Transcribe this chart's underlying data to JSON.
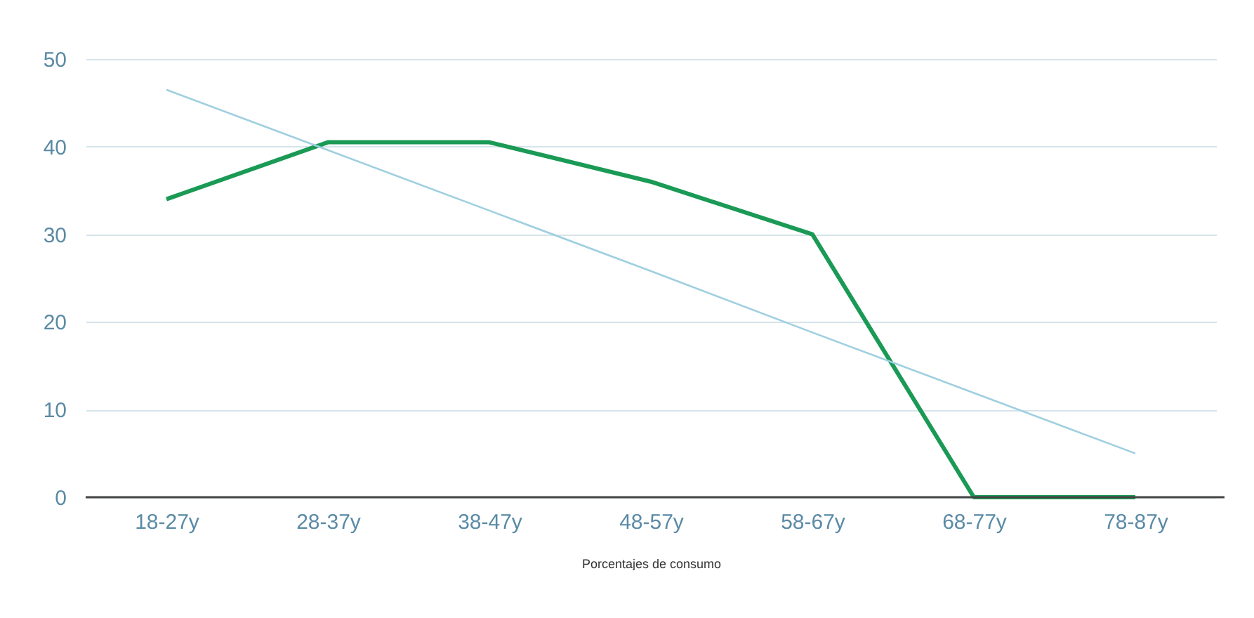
{
  "chart_data": {
    "type": "line",
    "xlabel": "Porcentajes de consumo",
    "categories": [
      "18-27y",
      "28-37y",
      "38-47y",
      "48-57y",
      "58-67y",
      "68-77y",
      "78-87y"
    ],
    "series": [
      {
        "color": "#1a9a55",
        "values": [
          34,
          40.5,
          40.5,
          36,
          30,
          0,
          0
        ]
      },
      {
        "color": "#9fcfe0",
        "values": [
          46.5,
          39.6,
          32.7,
          25.8,
          18.8,
          11.9,
          5.0
        ]
      }
    ],
    "ylim": [
      0,
      50
    ],
    "yticks": [
      0,
      10,
      20,
      30,
      40,
      50
    ],
    "grid": "y"
  }
}
